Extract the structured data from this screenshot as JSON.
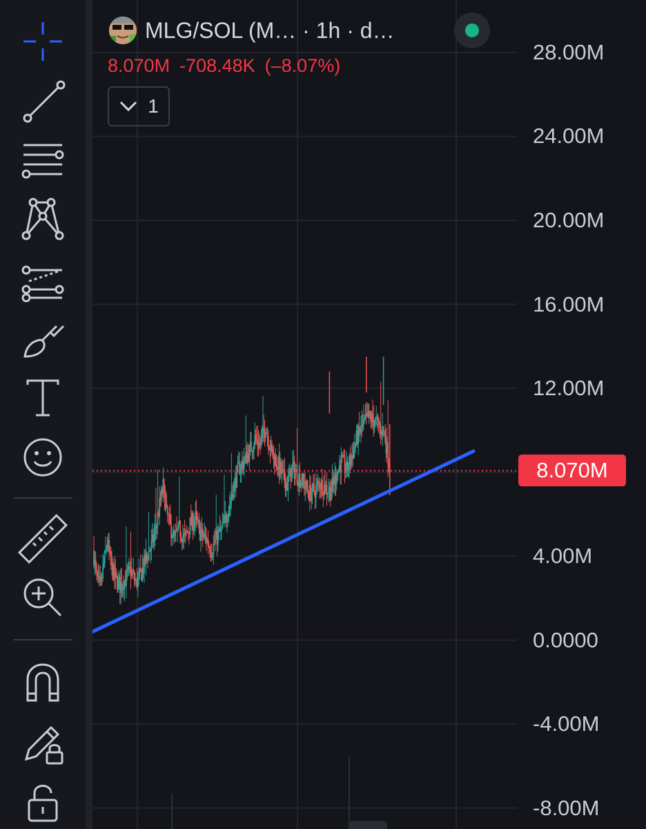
{
  "header": {
    "symbol": "MLG/SOL (M… · 1h · d…",
    "last_price": "8.070M",
    "change": "-708.48K",
    "change_pct": "(–8.07%)",
    "collapse_count": "1",
    "status_color": "#19b389"
  },
  "colors": {
    "up": "#26a69a",
    "down": "#ef5350",
    "trendline": "#2962ff",
    "price_tag": "#f23645"
  },
  "toolbar": {
    "icons": [
      "crosshair-icon",
      "trend-line-icon",
      "fib-retracement-icon",
      "xabcd-pattern-icon",
      "forecast-icon",
      "brush-icon",
      "text-icon",
      "emoji-icon",
      "ruler-icon",
      "zoom-in-icon",
      "magnet-icon",
      "lock-drawing-icon",
      "unlock-icon"
    ]
  },
  "chart_data": {
    "type": "candlestick",
    "title": "",
    "y_axis": {
      "ticks": [
        "28.00M",
        "24.00M",
        "20.00M",
        "16.00M",
        "12.00M",
        "8.00M",
        "4.00M",
        "0.0000",
        "-4.00M",
        "-8.00M"
      ],
      "tick_values": [
        28,
        24,
        20,
        16,
        12,
        8,
        4,
        0,
        -4,
        -8
      ],
      "unit": "M",
      "range": [
        -9.0,
        30.5
      ],
      "last_price_label": "8.070M",
      "last_price_value": 8.07
    },
    "gridlines": true,
    "trendline": {
      "start_value": 0.4,
      "end_value": 9.0
    },
    "price_path": [
      [
        0,
        4.3
      ],
      [
        4,
        3.0
      ],
      [
        8,
        2.4
      ],
      [
        12,
        3.6
      ],
      [
        16,
        4.7
      ],
      [
        20,
        3.5
      ],
      [
        25,
        2.9
      ],
      [
        30,
        2.6
      ],
      [
        36,
        2.9
      ],
      [
        42,
        3.3
      ],
      [
        48,
        2.7
      ],
      [
        54,
        3.2
      ],
      [
        60,
        4.0
      ],
      [
        66,
        4.6
      ],
      [
        70,
        5.4
      ],
      [
        74,
        6.4
      ],
      [
        78,
        7.3
      ],
      [
        82,
        6.0
      ],
      [
        86,
        5.4
      ],
      [
        90,
        4.8
      ],
      [
        96,
        5.3
      ],
      [
        102,
        4.8
      ],
      [
        108,
        5.5
      ],
      [
        114,
        5.8
      ],
      [
        120,
        5.0
      ],
      [
        126,
        4.8
      ],
      [
        132,
        4.3
      ],
      [
        138,
        4.9
      ],
      [
        144,
        5.3
      ],
      [
        150,
        6.2
      ],
      [
        156,
        7.2
      ],
      [
        162,
        8.2
      ],
      [
        168,
        8.5
      ],
      [
        174,
        9.0
      ],
      [
        180,
        9.6
      ],
      [
        186,
        9.3
      ],
      [
        192,
        10.2
      ],
      [
        198,
        9.0
      ],
      [
        204,
        8.5
      ],
      [
        210,
        7.9
      ],
      [
        216,
        7.4
      ],
      [
        222,
        8.2
      ],
      [
        228,
        7.8
      ],
      [
        234,
        7.5
      ],
      [
        240,
        7.0
      ],
      [
        246,
        7.1
      ],
      [
        252,
        7.5
      ],
      [
        258,
        7.3
      ],
      [
        264,
        7.1
      ],
      [
        270,
        7.8
      ],
      [
        276,
        8.5
      ],
      [
        282,
        8.1
      ],
      [
        288,
        8.8
      ],
      [
        294,
        9.7
      ],
      [
        300,
        10.2
      ],
      [
        306,
        10.6
      ],
      [
        312,
        10.5
      ],
      [
        318,
        10.2
      ],
      [
        324,
        9.9
      ],
      [
        330,
        8.2
      ]
    ]
  }
}
